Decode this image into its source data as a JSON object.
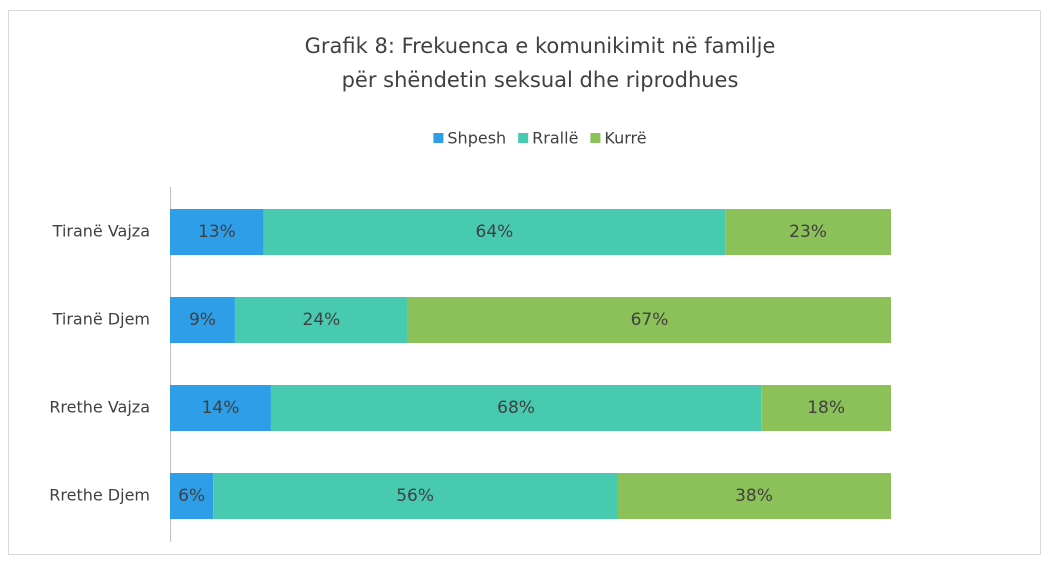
{
  "chart_data": {
    "type": "stacked-bar-horizontal",
    "title": [
      "Grafik 8: Frekuenca e komunikimit në familje",
      "për shëndetin seksual dhe riprodhues"
    ],
    "categories": [
      "Tiranë Vajza",
      "Tiranë Djem",
      "Rrethe Vajza",
      "Rrethe Djem"
    ],
    "series": [
      {
        "name": "Shpesh",
        "color": "#2e9ee8",
        "values": [
          13,
          9,
          14,
          6
        ],
        "value_labels": [
          "13%",
          "9%",
          "14%",
          "6%"
        ]
      },
      {
        "name": "Rrallë",
        "color": "#48cab0",
        "values": [
          64,
          24,
          68,
          56
        ],
        "value_labels": [
          "64%",
          "24%",
          "68%",
          "56%"
        ]
      },
      {
        "name": "Kurrë",
        "color": "#8bc158",
        "values": [
          23,
          67,
          18,
          38
        ],
        "value_labels": [
          "23%",
          "67%",
          "18%",
          "38%"
        ]
      }
    ],
    "xlim": [
      0,
      100
    ],
    "legend": "top"
  }
}
